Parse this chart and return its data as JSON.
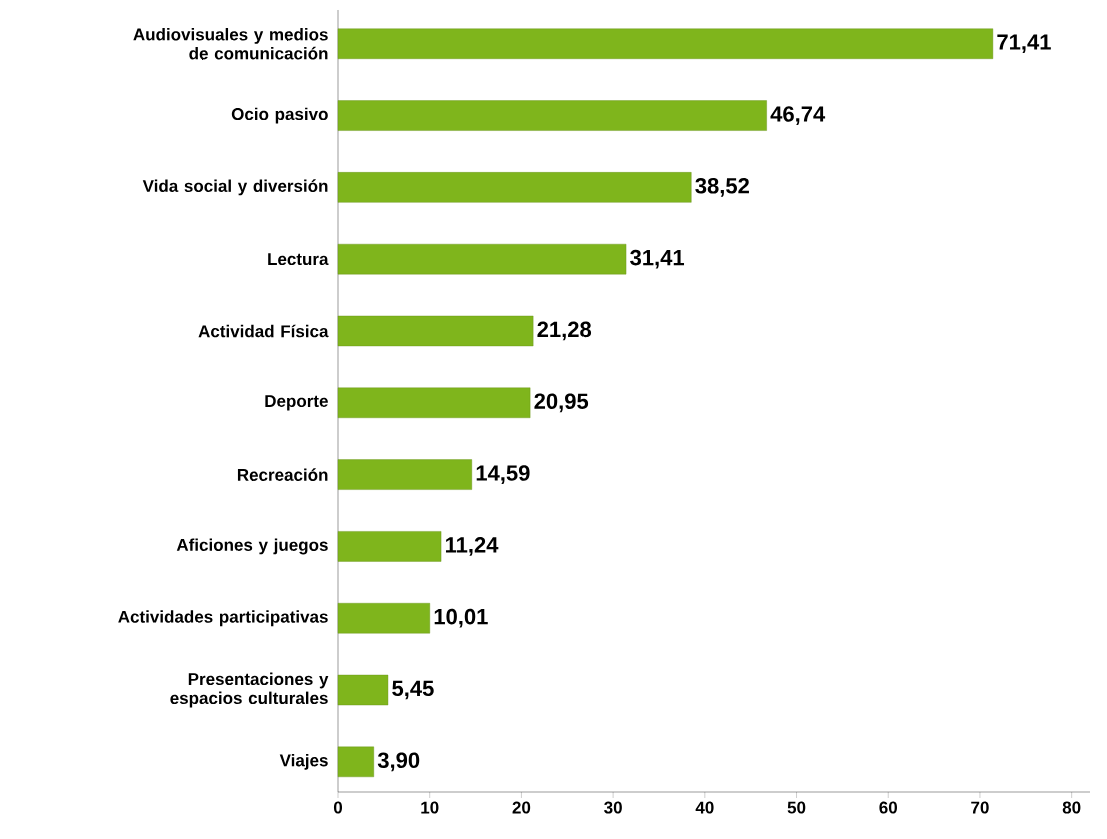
{
  "chart_data": {
    "type": "bar",
    "orientation": "horizontal",
    "categories": [
      "Audiovisuales y medios de comunicación",
      "Ocio pasivo",
      "Vida social y diversión",
      "Lectura",
      "Actividad Física",
      "Deporte",
      "Recreación",
      "Aficiones y juegos",
      "Actividades participativas",
      "Presentaciones y espacios culturales",
      "Viajes"
    ],
    "values": [
      71.41,
      46.74,
      38.52,
      31.41,
      21.28,
      20.95,
      14.59,
      11.24,
      10.01,
      5.45,
      3.9
    ],
    "value_labels": [
      "71,41",
      "46,74",
      "38,52",
      "31,41",
      "21,28",
      "20,95",
      "14,59",
      "11,24",
      "10,01",
      "5,45",
      "3,90"
    ],
    "color": "#7fb51c",
    "xlim": [
      0,
      82
    ],
    "xticks": [
      0,
      10,
      20,
      30,
      40,
      50,
      60,
      70,
      80
    ],
    "grid": false
  }
}
